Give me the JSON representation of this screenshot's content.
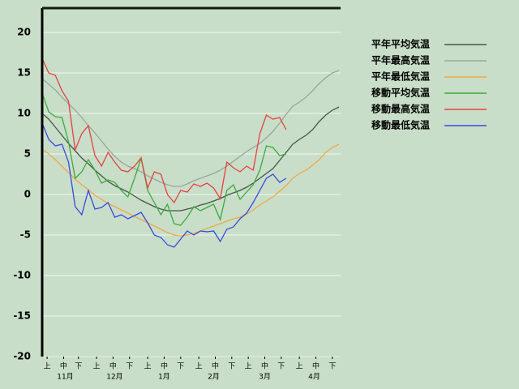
{
  "chart_data": {
    "type": "line",
    "x": [
      0,
      4,
      8,
      12,
      16,
      20,
      24,
      28,
      32,
      36,
      40,
      44,
      48,
      52,
      56,
      60,
      64,
      68,
      72,
      76,
      80,
      84,
      88,
      92,
      96,
      100,
      104,
      108,
      112,
      116,
      120,
      124,
      128,
      132,
      136,
      140,
      144,
      148,
      152,
      156,
      160,
      164,
      168,
      172,
      176,
      180
    ],
    "xlim": [
      0,
      181
    ],
    "xticks": [
      {
        "value": 3,
        "label": "上"
      },
      {
        "value": 13,
        "label": "中"
      },
      {
        "value": 22,
        "label": "下"
      },
      {
        "value": 33,
        "label": "上"
      },
      {
        "value": 43,
        "label": "中"
      },
      {
        "value": 53,
        "label": "下"
      },
      {
        "value": 64,
        "label": "上"
      },
      {
        "value": 74,
        "label": "中"
      },
      {
        "value": 84,
        "label": "下"
      },
      {
        "value": 95,
        "label": "上"
      },
      {
        "value": 105,
        "label": "中"
      },
      {
        "value": 115,
        "label": "下"
      },
      {
        "value": 125,
        "label": "上"
      },
      {
        "value": 135,
        "label": "中"
      },
      {
        "value": 145,
        "label": "下"
      },
      {
        "value": 156,
        "label": "上"
      },
      {
        "value": 166,
        "label": "中"
      },
      {
        "value": 176,
        "label": "下"
      }
    ],
    "month_labels": [
      {
        "value": 14,
        "label": "11月"
      },
      {
        "value": 44,
        "label": "12月"
      },
      {
        "value": 74,
        "label": "1月"
      },
      {
        "value": 104,
        "label": "2月"
      },
      {
        "value": 135,
        "label": "3月"
      },
      {
        "value": 165,
        "label": "4月"
      }
    ],
    "ylim": [
      -20,
      23
    ],
    "yticks": [
      -20,
      -15,
      -10,
      -5,
      0,
      5,
      10,
      15,
      20
    ],
    "grid": true,
    "legend": "right",
    "series": [
      {
        "name": "平年平均気温",
        "color": "#44574a",
        "values": [
          10,
          9.3,
          8.3,
          7.3,
          6.3,
          5.4,
          4.5,
          3.8,
          3.0,
          2.3,
          1.6,
          1.1,
          0.7,
          0.3,
          -0.2,
          -0.7,
          -1.1,
          -1.5,
          -1.8,
          -2.0,
          -2.0,
          -2.0,
          -1.8,
          -1.6,
          -1.3,
          -1.1,
          -0.8,
          -0.5,
          -0.1,
          0.2,
          0.5,
          0.9,
          1.4,
          2.0,
          2.6,
          3.2,
          4.2,
          5.2,
          6.2,
          6.8,
          7.3,
          8.0,
          9.0,
          9.8,
          10.4,
          10.8
        ]
      },
      {
        "name": "平年最高気温",
        "color": "#9aa69a",
        "values": [
          14.3,
          13.6,
          12.9,
          12.0,
          11.2,
          10.4,
          9.5,
          8.5,
          7.6,
          6.6,
          5.6,
          4.7,
          4.0,
          3.5,
          3.2,
          2.8,
          2.3,
          1.9,
          1.5,
          1.2,
          1.0,
          1.0,
          1.3,
          1.7,
          2.0,
          2.3,
          2.6,
          3.0,
          3.5,
          4.1,
          4.7,
          5.3,
          5.8,
          6.3,
          7.0,
          7.8,
          8.8,
          9.9,
          10.9,
          11.4,
          12.0,
          12.8,
          13.7,
          14.4,
          15.0,
          15.3
        ]
      },
      {
        "name": "平年最低気温",
        "color": "#f0a848",
        "values": [
          5.6,
          5.0,
          4.3,
          3.5,
          2.7,
          1.9,
          1.2,
          0.6,
          -0.1,
          -0.6,
          -1.1,
          -1.5,
          -1.9,
          -2.3,
          -2.7,
          -3.1,
          -3.5,
          -3.9,
          -4.3,
          -4.7,
          -5.0,
          -5.1,
          -5.0,
          -4.8,
          -4.5,
          -4.2,
          -3.9,
          -3.6,
          -3.3,
          -3.0,
          -2.8,
          -2.4,
          -1.9,
          -1.3,
          -0.8,
          -0.3,
          0.4,
          1.1,
          2.0,
          2.6,
          3.0,
          3.6,
          4.3,
          5.2,
          5.8,
          6.2
        ]
      },
      {
        "name": "移動平均気温",
        "color": "#3caa3c",
        "values": [
          12.5,
          10.2,
          9.6,
          9.5,
          6.5,
          2.0,
          2.8,
          4.3,
          3.0,
          1.4,
          1.8,
          1.5,
          0.5,
          -0.3,
          2.0,
          4.5,
          0.5,
          -1.0,
          -2.5,
          -1.2,
          -3.6,
          -3.8,
          -2.8,
          -1.5,
          -2.0,
          -1.6,
          -1.2,
          -3.1,
          0.5,
          1.2,
          -0.6,
          0.3,
          1.2,
          3.0,
          6.0,
          5.8,
          4.8,
          5.0,
          null,
          null,
          null,
          null,
          null,
          null,
          null,
          null
        ]
      },
      {
        "name": "移動最高気温",
        "color": "#e84040",
        "values": [
          16.8,
          15,
          14.7,
          12.8,
          11.5,
          5.5,
          7.5,
          8.5,
          4.8,
          3.5,
          5.2,
          4.0,
          3.0,
          2.8,
          3.5,
          4.5,
          0.8,
          2.8,
          2.5,
          0.0,
          -1.0,
          0.5,
          0.3,
          1.3,
          1.0,
          1.4,
          0.8,
          -0.5,
          4.0,
          3.3,
          2.8,
          3.5,
          3.0,
          7.5,
          9.8,
          9.3,
          9.5,
          8.0,
          null,
          null,
          null,
          null,
          null,
          null,
          null,
          null
        ]
      },
      {
        "name": "移動最低気温",
        "color": "#3848e0",
        "values": [
          8.8,
          6.8,
          6.0,
          6.2,
          4.0,
          -1.5,
          -2.5,
          0.5,
          -1.8,
          -1.6,
          -1.0,
          -2.8,
          -2.5,
          -3.0,
          -2.6,
          -2.2,
          -3.5,
          -5.0,
          -5.3,
          -6.2,
          -6.5,
          -5.5,
          -4.5,
          -5.0,
          -4.5,
          -4.6,
          -4.5,
          -5.8,
          -4.3,
          -4.0,
          -3.0,
          -2.3,
          -1.0,
          0.5,
          2.0,
          2.5,
          1.5,
          2.0,
          null,
          null,
          null,
          null,
          null,
          null,
          null,
          null
        ]
      }
    ]
  }
}
